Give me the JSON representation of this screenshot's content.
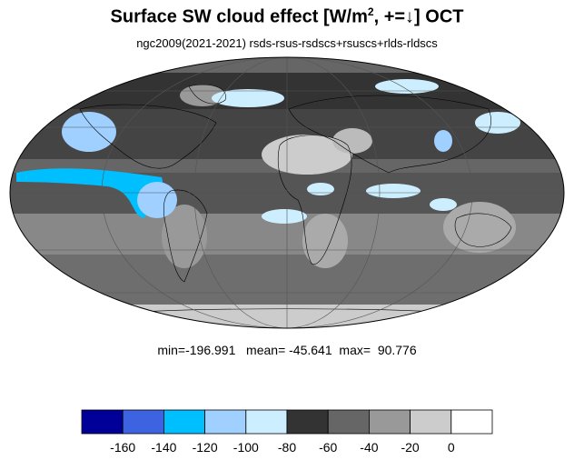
{
  "title": {
    "main_prefix": "Surface SW cloud effect [W/m",
    "superscript": "2",
    "main_suffix": ", +=↓]  OCT"
  },
  "subtitle": "ngc2009(2021-2021)  rsds-rsus-rsdscs+rsuscs+rlds-rldscs",
  "stats": {
    "min_label": "min=",
    "min_value": "-196.991",
    "mean_label": "mean=",
    "mean_value": "-45.641",
    "max_label": "max=",
    "max_value": "90.776"
  },
  "colorbar": {
    "colors": [
      "#000099",
      "#3d63e0",
      "#00bfff",
      "#a0d0ff",
      "#cceeff",
      "#333333",
      "#666666",
      "#999999",
      "#cccccc",
      "#ffffff"
    ],
    "tick_labels": [
      "-160",
      "-140",
      "-120",
      "-100",
      "-80",
      "-60",
      "-40",
      "-20",
      "0"
    ]
  },
  "map": {
    "projection": "Mollweide",
    "month": "OCT",
    "grid": true
  }
}
